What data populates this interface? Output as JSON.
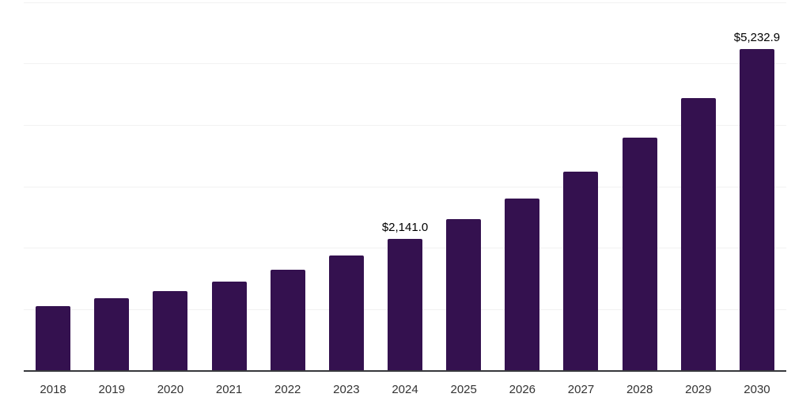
{
  "chart_data": {
    "type": "bar",
    "title": "",
    "xlabel": "",
    "ylabel": "",
    "categories": [
      "2018",
      "2019",
      "2020",
      "2021",
      "2022",
      "2023",
      "2024",
      "2025",
      "2026",
      "2027",
      "2028",
      "2029",
      "2030"
    ],
    "values": [
      1050,
      1175,
      1290,
      1445,
      1640,
      1870,
      2141.0,
      2460,
      2800,
      3240,
      3790,
      4440,
      5232.9
    ],
    "data_labels": {
      "2024": "$2,141.0",
      "2030": "$5,232.9"
    },
    "ylim": [
      0,
      6000
    ],
    "gridline_interval": 1000,
    "grid": "horizontal-only",
    "legend": "none",
    "y_tick_labels_visible": false,
    "colors": {
      "bar": "#34114f",
      "gridline": "#f2f2f2",
      "axis_line": "#37383c",
      "value_label": "#000000",
      "tick_label": "#333333",
      "background": "#ffffff"
    }
  }
}
